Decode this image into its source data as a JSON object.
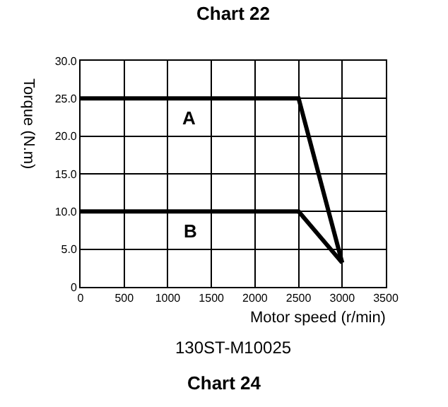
{
  "chart_data": {
    "type": "line",
    "title": "Chart 24",
    "xlabel": "Motor speed (r/min)",
    "ylabel": "Torque (N.m)",
    "annotations": [
      "Chart 22",
      "130ST-M10025"
    ],
    "x": [
      0,
      2500,
      3000
    ],
    "series": [
      {
        "name": "A",
        "color": "#000000",
        "values": [
          25,
          25,
          3.2
        ]
      },
      {
        "name": "B",
        "color": "#000000",
        "values": [
          10,
          10,
          3.2
        ]
      }
    ],
    "xlim": [
      0,
      3500
    ],
    "xticks": [
      0,
      500,
      1000,
      1500,
      2000,
      2500,
      3000,
      3500
    ],
    "ylim": [
      0,
      30
    ],
    "yticks": [
      0,
      {
        "value": 5,
        "label": "5.0"
      },
      {
        "value": 10,
        "label": "10.0"
      },
      {
        "value": 15,
        "label": "15.0"
      },
      {
        "value": 20,
        "label": "20.0"
      },
      {
        "value": 25,
        "label": "25.0"
      },
      {
        "value": 30,
        "label": "30.0"
      }
    ],
    "grid": true,
    "legend": false,
    "marker": "none",
    "line_style": "solid"
  }
}
